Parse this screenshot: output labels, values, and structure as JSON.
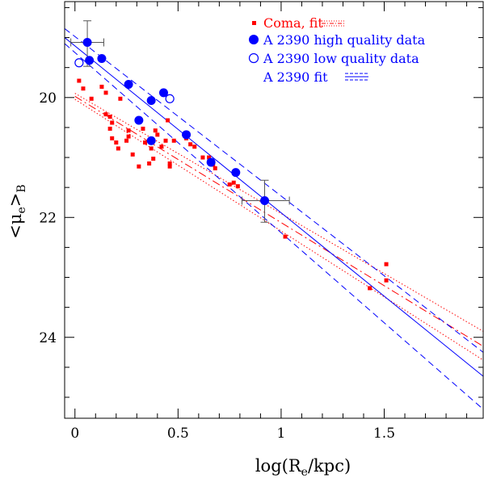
{
  "chart_data": {
    "type": "scatter",
    "xlabel_main": "log(R",
    "xlabel_sub": "e",
    "xlabel_tail": "/kpc)",
    "ylabel_open": "<μ",
    "ylabel_sub": "e",
    "ylabel_close": ">",
    "ylabel_subB": "B",
    "xlim": [
      -0.05,
      1.98
    ],
    "ylim": [
      25.35,
      18.4
    ],
    "y_inverted": true,
    "x_ticks": [
      {
        "value": 0,
        "label": "0"
      },
      {
        "value": 0.5,
        "label": "0.5"
      },
      {
        "value": 1,
        "label": "1"
      },
      {
        "value": 1.5,
        "label": "1.5"
      }
    ],
    "y_ticks": [
      {
        "value": 20,
        "label": "20"
      },
      {
        "value": 22,
        "label": "22"
      },
      {
        "value": 24,
        "label": "24"
      }
    ],
    "legend": {
      "position": "top-right",
      "entries": [
        {
          "label": "Coma, fit",
          "symbol": "square",
          "color": "#ff0000"
        },
        {
          "label": "A 2390 high quality data",
          "symbol": "filled-circle",
          "color": "#0000ff"
        },
        {
          "label": "A 2390 low quality data",
          "symbol": "open-circle",
          "color": "#0000ff"
        },
        {
          "label": "A 2390 fit",
          "symbol": "lines",
          "color": "#0000ff"
        }
      ]
    },
    "colors": {
      "coma": "#ff0000",
      "a2390": "#0000ff",
      "errorbar": "#555555"
    },
    "series": [
      {
        "name": "Coma",
        "marker": "square",
        "color": "#ff0000",
        "points": [
          [
            0.02,
            19.72
          ],
          [
            0.04,
            19.85
          ],
          [
            0.08,
            20.02
          ],
          [
            0.13,
            19.82
          ],
          [
            0.15,
            19.92
          ],
          [
            0.15,
            20.28
          ],
          [
            0.17,
            20.32
          ],
          [
            0.18,
            20.42
          ],
          [
            0.17,
            20.52
          ],
          [
            0.18,
            20.68
          ],
          [
            0.2,
            20.75
          ],
          [
            0.21,
            20.85
          ],
          [
            0.22,
            20.02
          ],
          [
            0.26,
            20.55
          ],
          [
            0.25,
            20.72
          ],
          [
            0.26,
            20.65
          ],
          [
            0.28,
            20.95
          ],
          [
            0.31,
            21.15
          ],
          [
            0.33,
            20.52
          ],
          [
            0.34,
            20.75
          ],
          [
            0.36,
            21.1
          ],
          [
            0.37,
            20.85
          ],
          [
            0.38,
            21.02
          ],
          [
            0.39,
            20.55
          ],
          [
            0.4,
            20.62
          ],
          [
            0.42,
            20.82
          ],
          [
            0.44,
            20.72
          ],
          [
            0.45,
            20.38
          ],
          [
            0.46,
            21.1
          ],
          [
            0.46,
            21.15
          ],
          [
            0.48,
            20.72
          ],
          [
            0.54,
            20.68
          ],
          [
            0.56,
            20.78
          ],
          [
            0.58,
            20.82
          ],
          [
            0.62,
            21.0
          ],
          [
            0.65,
            21.0
          ],
          [
            0.67,
            21.12
          ],
          [
            0.68,
            21.18
          ],
          [
            0.75,
            21.45
          ],
          [
            0.77,
            21.42
          ],
          [
            0.79,
            21.48
          ],
          [
            1.02,
            22.32
          ],
          [
            1.43,
            23.18
          ],
          [
            1.51,
            22.78
          ],
          [
            1.51,
            23.05
          ]
        ]
      },
      {
        "name": "A 2390 high quality data",
        "marker": "filled-circle",
        "color": "#0000ff",
        "points": [
          [
            0.06,
            19.08
          ],
          [
            0.07,
            19.38
          ],
          [
            0.13,
            19.35
          ],
          [
            0.26,
            19.78
          ],
          [
            0.31,
            20.38
          ],
          [
            0.37,
            20.05
          ],
          [
            0.37,
            20.72
          ],
          [
            0.43,
            19.92
          ],
          [
            0.54,
            20.62
          ],
          [
            0.66,
            21.08
          ],
          [
            0.78,
            21.25
          ],
          [
            0.92,
            21.72
          ]
        ]
      },
      {
        "name": "A 2390 low quality data",
        "marker": "open-circle",
        "color": "#0000ff",
        "points": [
          [
            0.02,
            19.42
          ],
          [
            0.46,
            20.02
          ]
        ]
      }
    ],
    "error_bars": [
      {
        "x": 0.06,
        "y": 19.08,
        "xlo": -0.02,
        "xhi": 0.14,
        "ylo": 18.72,
        "yhi": 19.48
      },
      {
        "x": 0.92,
        "y": 21.72,
        "xlo": 0.81,
        "xhi": 1.04,
        "ylo": 21.38,
        "yhi": 22.08
      }
    ],
    "fit_lines": [
      {
        "name": "Coma fit",
        "color": "#ff0000",
        "style": "dash-dot",
        "x": [
          0,
          1.98
        ],
        "y": [
          19.98,
          24.15
        ]
      },
      {
        "name": "Coma fit upper",
        "color": "#ff0000",
        "style": "dotted",
        "x": [
          0,
          1.98
        ],
        "y": [
          19.93,
          23.9
        ]
      },
      {
        "name": "Coma fit lower",
        "color": "#ff0000",
        "style": "dotted",
        "x": [
          0,
          1.98
        ],
        "y": [
          20.03,
          24.38
        ]
      },
      {
        "name": "A 2390 fit",
        "color": "#0000ff",
        "style": "solid",
        "x": [
          -0.05,
          1.98
        ],
        "y": [
          19.0,
          24.65
        ]
      },
      {
        "name": "A 2390 fit upper",
        "color": "#0000ff",
        "style": "dashed",
        "x": [
          -0.05,
          1.98
        ],
        "y": [
          18.85,
          24.25
        ]
      },
      {
        "name": "A 2390 fit lower",
        "color": "#0000ff",
        "style": "dashed",
        "x": [
          -0.05,
          1.98
        ],
        "y": [
          19.1,
          25.2
        ]
      }
    ]
  }
}
